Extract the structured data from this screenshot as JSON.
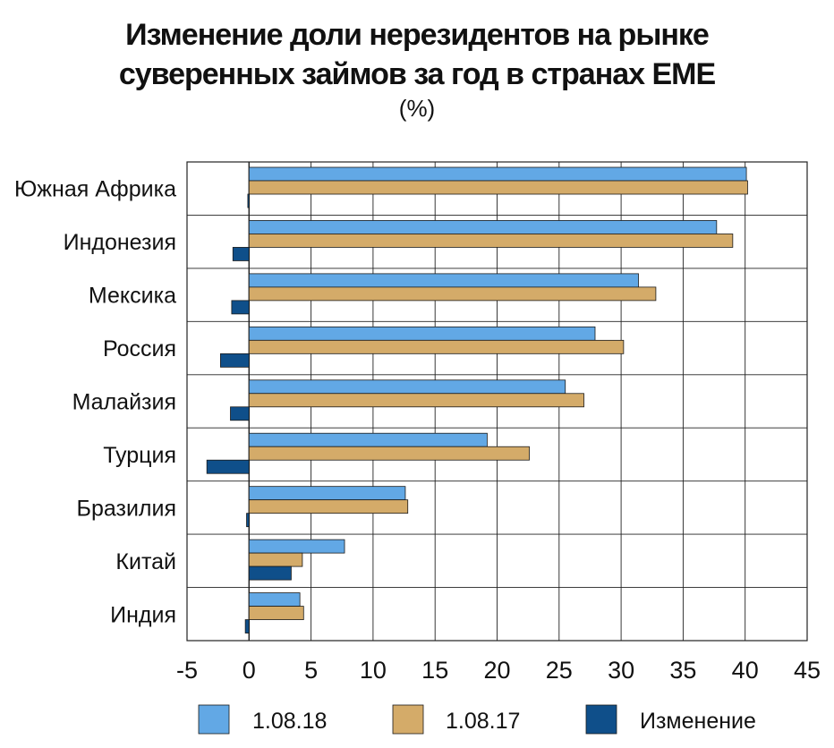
{
  "title_line1": "Изменение доли нерезидентов на рынке",
  "title_line2": "суверенных займов за год в странах EME",
  "subtitle": "(%)",
  "colors": {
    "s1": "#62a8e5",
    "s2": "#d4ab69",
    "s3": "#0f4f8a",
    "grid": "#222222"
  },
  "chart_data": {
    "type": "bar",
    "orientation": "horizontal",
    "title": "Изменение доли нерезидентов на рынке суверенных займов за год в странах EME",
    "subtitle": "(%)",
    "categories": [
      "Южная Африка",
      "Индонезия",
      "Мексика",
      "Россия",
      "Малайзия",
      "Турция",
      "Бразилия",
      "Китай",
      "Индия"
    ],
    "series": [
      {
        "name": "1.08.18",
        "values": [
          40.1,
          37.7,
          31.4,
          27.9,
          25.5,
          19.2,
          12.6,
          7.7,
          4.1
        ]
      },
      {
        "name": "1.08.17",
        "values": [
          40.2,
          39.0,
          32.8,
          30.2,
          27.0,
          22.6,
          12.8,
          4.3,
          4.4
        ]
      },
      {
        "name": "Изменение",
        "values": [
          -0.1,
          -1.3,
          -1.4,
          -2.3,
          -1.5,
          -3.4,
          -0.2,
          3.4,
          -0.3
        ]
      }
    ],
    "xlim": [
      -5,
      45
    ],
    "xticks": [
      "-5",
      "0",
      "5",
      "10",
      "15",
      "20",
      "25",
      "30",
      "35",
      "40",
      "45"
    ],
    "grid": true,
    "legend": "bottom"
  }
}
